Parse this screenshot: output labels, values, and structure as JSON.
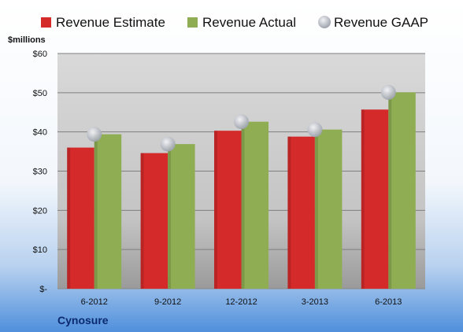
{
  "chart_data": {
    "type": "bar",
    "ylabel": "$millions",
    "company": "Cynosure",
    "categories": [
      "6-2012",
      "9-2012",
      "12-2012",
      "3-2013",
      "6-2013"
    ],
    "ylim": [
      0,
      60
    ],
    "yticks": [
      0,
      10,
      20,
      30,
      40,
      50,
      60
    ],
    "ytick_labels": [
      "$-",
      "$10",
      "$20",
      "$30",
      "$40",
      "$50",
      "$60"
    ],
    "grid": true,
    "legend_position": "top",
    "series": [
      {
        "name": "Revenue Estimate",
        "type": "bar",
        "color": "#d42a2a",
        "values": [
          36.0,
          34.6,
          40.3,
          38.8,
          45.7
        ]
      },
      {
        "name": "Revenue Actual",
        "type": "bar",
        "color": "#8fae54",
        "values": [
          39.4,
          36.9,
          42.6,
          40.6,
          50.1
        ]
      },
      {
        "name": "Revenue GAAP",
        "type": "marker",
        "color": "#b8bcc4",
        "values": [
          39.4,
          36.9,
          42.6,
          40.6,
          50.1
        ]
      }
    ]
  }
}
